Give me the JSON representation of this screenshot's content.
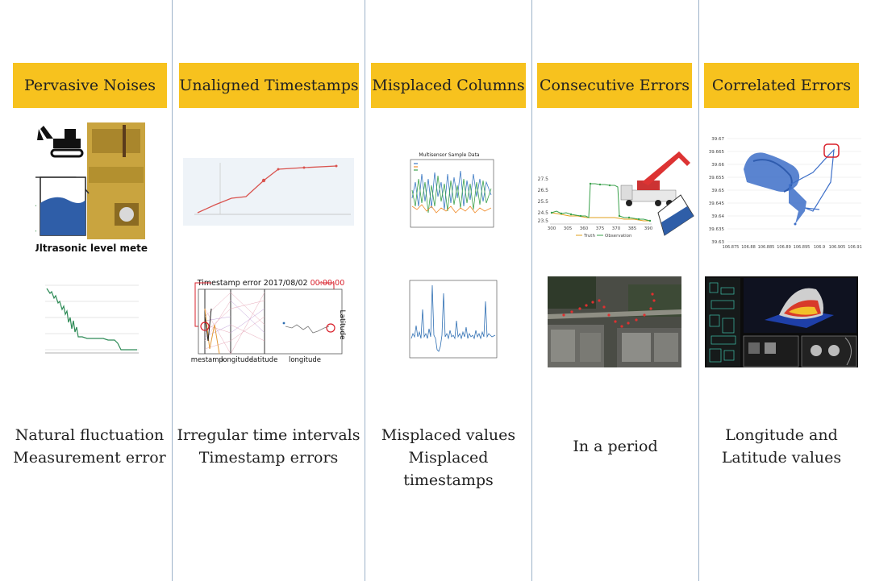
{
  "columns": [
    {
      "title": "Pervasive Noises",
      "caption_lines": [
        "Natural fluctuation",
        "Measurement error"
      ]
    },
    {
      "title": "Unaligned Timestamps",
      "caption_lines": [
        "Irregular time intervals",
        "Timestamp errors"
      ]
    },
    {
      "title": "Misplaced Columns",
      "caption_lines": [
        "Misplaced values",
        "Misplaced timestamps"
      ]
    },
    {
      "title": "Consecutive Errors",
      "caption_lines": [
        "In a period"
      ]
    },
    {
      "title": "Correlated Errors",
      "caption_lines": [
        "Longitude and",
        "Latitude values"
      ]
    }
  ],
  "panels": {
    "ultrasonic_label": "Ultrasonic level meter",
    "timestamp_error_prefix": "Timestamp error 2017/08/02 ",
    "timestamp_error_time": "00:00:00",
    "pc_axes": [
      "timestamp",
      "longitude",
      "latitude",
      "longitude"
    ],
    "pc_vertical_label": "Latitude",
    "multi_chart_title": "Multisensor Sample Data",
    "consec_legend": [
      "Truth",
      "Observation"
    ],
    "consec_y_ticks": [
      "27.5",
      "26.5",
      "25.5",
      "24.5",
      "23.5"
    ],
    "consec_x_ticks": [
      "300",
      "305",
      "360",
      "375",
      "370",
      "385",
      "390"
    ],
    "scatter_y_ticks": [
      "39.67",
      "39.665",
      "39.66",
      "39.655",
      "39.65",
      "39.645",
      "39.64",
      "39.635",
      "39.63"
    ],
    "scatter_x_ticks": [
      "106.875",
      "106.88",
      "106.885",
      "106.89",
      "106.895",
      "106.9",
      "106.905",
      "106.91"
    ]
  },
  "colors": {
    "header": "#f7c21e",
    "divider": "#9db3c9"
  }
}
